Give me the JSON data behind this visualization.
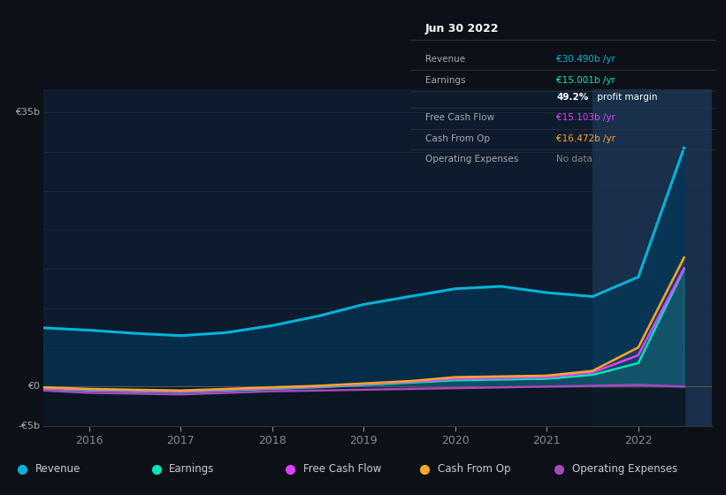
{
  "background_color": "#0d1117",
  "plot_bg_color": "#0d1b2e",
  "grid_color": "#1e2d40",
  "x_years": [
    2015.5,
    2016.0,
    2016.5,
    2017.0,
    2017.5,
    2018.0,
    2018.5,
    2019.0,
    2019.5,
    2020.0,
    2020.5,
    2021.0,
    2021.5,
    2022.0,
    2022.5
  ],
  "revenue": [
    7.5,
    7.2,
    6.8,
    6.5,
    6.9,
    7.8,
    9.0,
    10.5,
    11.5,
    12.5,
    12.8,
    12.0,
    11.5,
    14.0,
    30.49
  ],
  "earnings": [
    -0.3,
    -0.5,
    -0.6,
    -0.7,
    -0.5,
    -0.3,
    -0.1,
    0.2,
    0.5,
    0.8,
    0.9,
    1.0,
    1.5,
    3.0,
    15.001
  ],
  "free_cash_flow": [
    -0.2,
    -0.4,
    -0.5,
    -0.6,
    -0.4,
    -0.2,
    0.0,
    0.3,
    0.6,
    1.0,
    1.1,
    1.2,
    1.8,
    4.0,
    15.103
  ],
  "cash_from_op": [
    -0.1,
    -0.3,
    -0.4,
    -0.5,
    -0.3,
    -0.1,
    0.1,
    0.4,
    0.7,
    1.2,
    1.3,
    1.4,
    2.0,
    5.0,
    16.472
  ],
  "operating_expenses": [
    -0.5,
    -0.8,
    -0.9,
    -1.0,
    -0.8,
    -0.6,
    -0.5,
    -0.4,
    -0.3,
    -0.2,
    -0.1,
    0.0,
    0.1,
    0.2,
    0.0
  ],
  "revenue_color": "#00b4d8",
  "earnings_color": "#00e5c0",
  "fcf_color": "#e040fb",
  "cashop_color": "#ffa726",
  "opex_color": "#ab47bc",
  "revenue_fill": "#003a5c",
  "ylim": [
    -5,
    38
  ],
  "xlim": [
    2015.5,
    2022.8
  ],
  "xticks": [
    2016,
    2017,
    2018,
    2019,
    2020,
    2021,
    2022
  ],
  "highlight_start": 2021.5,
  "highlight_end": 2022.8,
  "tooltip": {
    "date": "Jun 30 2022",
    "rows": [
      {
        "label": "Revenue",
        "value": "€30.490b /yr",
        "value_color": "#00b4d8",
        "bold_part": ""
      },
      {
        "label": "Earnings",
        "value": "€15.001b /yr",
        "value_color": "#00e5c0",
        "bold_part": ""
      },
      {
        "label": "",
        "value": "49.2% profit margin",
        "value_color": "#ffffff",
        "bold_part": "49.2%"
      },
      {
        "label": "Free Cash Flow",
        "value": "€15.103b /yr",
        "value_color": "#e040fb",
        "bold_part": ""
      },
      {
        "label": "Cash From Op",
        "value": "€16.472b /yr",
        "value_color": "#ffa726",
        "bold_part": ""
      },
      {
        "label": "Operating Expenses",
        "value": "No data",
        "value_color": "#888888",
        "bold_part": ""
      }
    ]
  },
  "legend_items": [
    {
      "label": "Revenue",
      "color": "#00b4d8"
    },
    {
      "label": "Earnings",
      "color": "#00e5c0"
    },
    {
      "label": "Free Cash Flow",
      "color": "#e040fb"
    },
    {
      "label": "Cash From Op",
      "color": "#ffa726"
    },
    {
      "label": "Operating Expenses",
      "color": "#ab47bc"
    }
  ]
}
